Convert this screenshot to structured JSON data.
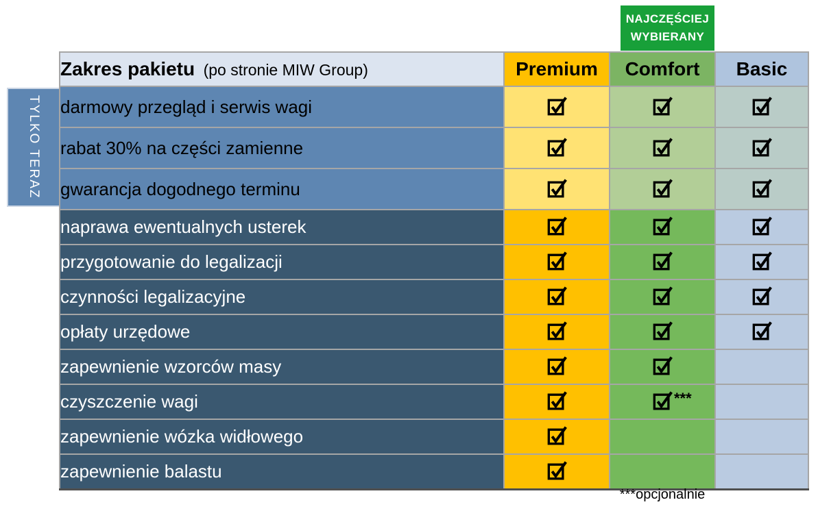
{
  "badge": {
    "line1": "NAJCZĘŚCIEJ",
    "line2": "WYBIERANY"
  },
  "side_tab": {
    "label": "TYLKO TERAZ"
  },
  "table": {
    "header": {
      "title": "Zakres pakietu",
      "subtitle": "(po stronie MIW Group)",
      "columns": [
        "Premium",
        "Comfort",
        "Basic"
      ]
    },
    "rows": [
      {
        "label": "darmowy przegląd i serwis wagi",
        "section": "promo",
        "premium": true,
        "comfort": true,
        "basic": true
      },
      {
        "label": "rabat 30% na części zamienne",
        "section": "promo",
        "premium": true,
        "comfort": true,
        "basic": true
      },
      {
        "label": "gwarancja dogodnego terminu",
        "section": "promo",
        "premium": true,
        "comfort": true,
        "basic": true
      },
      {
        "label": "naprawa ewentualnych usterek",
        "section": "standard",
        "premium": true,
        "comfort": true,
        "basic": true
      },
      {
        "label": "przygotowanie do legalizacji",
        "section": "standard",
        "premium": true,
        "comfort": true,
        "basic": true
      },
      {
        "label": "czynności legalizacyjne",
        "section": "standard",
        "premium": true,
        "comfort": true,
        "basic": true
      },
      {
        "label": "opłaty urzędowe",
        "section": "standard",
        "premium": true,
        "comfort": true,
        "basic": true
      },
      {
        "label": "zapewnienie wzorców masy",
        "section": "standard",
        "premium": true,
        "comfort": true,
        "basic": false
      },
      {
        "label": "czyszczenie wagi",
        "section": "standard",
        "premium": true,
        "comfort": true,
        "comfort_note": "***",
        "basic": false
      },
      {
        "label": "zapewnienie wózka widłowego",
        "section": "standard",
        "premium": true,
        "comfort": false,
        "basic": false
      },
      {
        "label": "zapewnienie balastu",
        "section": "standard",
        "premium": true,
        "comfort": false,
        "basic": false
      }
    ]
  },
  "footnote": "***opcjonalnie",
  "icons": {
    "checked": "checked-icon"
  },
  "colors": {
    "badge_green": "#18A039",
    "header_label_bg": "#DCE4F0",
    "premium_header": "#FFC000",
    "comfort_header": "#7CB463",
    "basic_header": "#AFC4DE",
    "premium_promo": "#FFE273",
    "comfort_promo": "#B2CE97",
    "basic_promo": "#B9CCC7",
    "premium_standard": "#FFC000",
    "comfort_standard": "#75B95B",
    "basic_standard": "#BACBE1",
    "label_promo": "#5E86B2",
    "label_standard": "#3A5870",
    "grid_border": "#A6A6A6"
  }
}
